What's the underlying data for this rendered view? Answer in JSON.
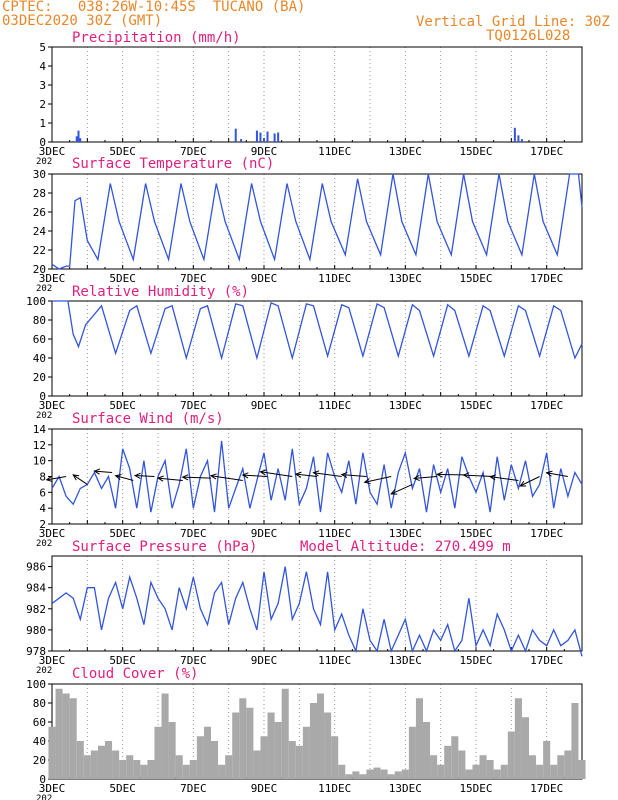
{
  "header": {
    "line1_left": "CPTEC:   038:26W-10:45S  TUCANO (BA)",
    "line2_left": "03DEC2020 30Z (GMT)",
    "line1_right": "Vertical Grid Line: 30Z",
    "line2_right": "TQ0126L028"
  },
  "x_tick_labels": [
    "3DEC",
    "5DEC",
    "7DEC",
    "9DEC",
    "11DEC",
    "13DEC",
    "15DEC",
    "17DEC"
  ],
  "x_year_stub": "202",
  "extra_label": "Model Altitude: 270.499 m",
  "colors": {
    "line": "#3355dd",
    "title": "#e0207f",
    "header": "#e8872a",
    "cloud": "#a9a9a9",
    "wind_arrow": "#000000"
  },
  "chart_data": [
    {
      "id": "precip",
      "type": "bar",
      "title": "Precipitation (mm/h)",
      "ylim": [
        0,
        5
      ],
      "yticks": [
        0,
        1,
        2,
        3,
        4,
        5
      ],
      "xlim_days": [
        3,
        18
      ],
      "x": [
        3.6,
        3.7,
        3.75,
        3.8,
        8.2,
        8.35,
        8.8,
        8.9,
        9.0,
        9.1,
        9.3,
        9.4,
        16.1,
        16.2,
        16.3
      ],
      "values": [
        0.05,
        0.3,
        0.6,
        0.2,
        0.7,
        0.15,
        0.6,
        0.5,
        0.2,
        0.55,
        0.45,
        0.5,
        0.75,
        0.35,
        0.15
      ]
    },
    {
      "id": "temp",
      "type": "line",
      "title": "Surface Temperature (nC)",
      "ylim": [
        20,
        30
      ],
      "yticks": [
        20,
        22,
        24,
        26,
        28,
        30
      ],
      "xlim_days": [
        3,
        18
      ],
      "series": [
        {
          "x": [
            3.0,
            3.2,
            3.4,
            3.5,
            3.65,
            3.8,
            4.0,
            4.3,
            4.65,
            4.9,
            5.3,
            5.65,
            5.9,
            6.3,
            6.65,
            6.9,
            7.3,
            7.65,
            7.9,
            8.3,
            8.65,
            8.9,
            9.3,
            9.65,
            9.9,
            10.3,
            10.65,
            10.9,
            11.3,
            11.65,
            11.9,
            12.3,
            12.65,
            12.9,
            13.3,
            13.65,
            13.9,
            14.3,
            14.65,
            14.9,
            15.3,
            15.65,
            15.9,
            16.3,
            16.65,
            16.9,
            17.3,
            17.65,
            17.9,
            18.0
          ],
          "values": [
            20.5,
            20.0,
            20.3,
            20.3,
            27.2,
            27.5,
            23.0,
            21.0,
            29.0,
            25.0,
            21.0,
            29.0,
            25.0,
            21.0,
            29.0,
            25.0,
            21.0,
            29.0,
            25.0,
            21.0,
            29.0,
            25.0,
            21.0,
            29.0,
            25.0,
            21.0,
            29.0,
            25.0,
            21.5,
            29.5,
            25.0,
            21.5,
            30.0,
            25.0,
            21.5,
            30.0,
            25.0,
            21.5,
            30.0,
            25.0,
            21.5,
            30.0,
            25.0,
            21.5,
            30.0,
            25.0,
            21.5,
            30.0,
            30.0,
            26.5
          ]
        }
      ]
    },
    {
      "id": "rh",
      "type": "line",
      "title": "Relative Humidity (%)",
      "ylim": [
        0,
        100
      ],
      "yticks": [
        0,
        20,
        40,
        60,
        80,
        100
      ],
      "xlim_days": [
        3,
        18
      ],
      "series": [
        {
          "x": [
            3.0,
            3.3,
            3.45,
            3.6,
            3.75,
            3.95,
            4.4,
            4.8,
            5.2,
            5.4,
            5.8,
            6.2,
            6.4,
            6.8,
            7.2,
            7.4,
            7.8,
            8.2,
            8.4,
            8.8,
            9.2,
            9.4,
            9.8,
            10.2,
            10.4,
            10.8,
            11.2,
            11.4,
            11.8,
            12.2,
            12.4,
            12.8,
            13.2,
            13.4,
            13.8,
            14.2,
            14.4,
            14.8,
            15.2,
            15.4,
            15.8,
            16.2,
            16.4,
            16.8,
            17.2,
            17.4,
            17.8,
            18.0
          ],
          "values": [
            100,
            100,
            100,
            65,
            52,
            75,
            95,
            45,
            90,
            95,
            45,
            92,
            95,
            40,
            92,
            95,
            40,
            97,
            95,
            40,
            98,
            95,
            40,
            97,
            95,
            42,
            96,
            93,
            42,
            97,
            93,
            42,
            96,
            90,
            42,
            96,
            90,
            42,
            95,
            90,
            42,
            95,
            90,
            42,
            95,
            90,
            40,
            55
          ]
        }
      ]
    },
    {
      "id": "wind",
      "type": "line",
      "title": "Surface Wind (m/s)",
      "ylim": [
        2,
        14
      ],
      "yticks": [
        2,
        4,
        6,
        8,
        10,
        12,
        14
      ],
      "xlim_days": [
        3,
        18
      ],
      "series": [
        {
          "x": [
            3.0,
            3.2,
            3.4,
            3.6,
            3.8,
            4.0,
            4.2,
            4.4,
            4.6,
            4.8,
            5.0,
            5.2,
            5.4,
            5.6,
            5.8,
            6.0,
            6.2,
            6.4,
            6.6,
            6.8,
            7.0,
            7.2,
            7.4,
            7.6,
            7.8,
            8.0,
            8.2,
            8.4,
            8.6,
            8.8,
            9.0,
            9.2,
            9.4,
            9.6,
            9.8,
            10.0,
            10.2,
            10.4,
            10.6,
            10.8,
            11.0,
            11.2,
            11.4,
            11.6,
            11.8,
            12.0,
            12.2,
            12.4,
            12.6,
            12.8,
            13.0,
            13.2,
            13.4,
            13.6,
            13.8,
            14.0,
            14.2,
            14.4,
            14.6,
            14.8,
            15.0,
            15.2,
            15.4,
            15.6,
            15.8,
            16.0,
            16.2,
            16.4,
            16.6,
            16.8,
            17.0,
            17.2,
            17.4,
            17.6,
            17.8,
            18.0
          ],
          "values": [
            6.5,
            8.0,
            5.5,
            4.5,
            6.5,
            7.0,
            8.5,
            6.5,
            8.0,
            4.0,
            11.5,
            9.0,
            4.0,
            10.0,
            3.5,
            8.0,
            10.0,
            4.0,
            7.0,
            11.5,
            4.0,
            8.0,
            10.0,
            3.5,
            12.5,
            4.0,
            6.5,
            9.0,
            4.0,
            7.5,
            11.0,
            5.0,
            9.0,
            5.0,
            11.5,
            4.5,
            6.5,
            10.5,
            3.5,
            11.0,
            8.0,
            6.0,
            10.0,
            4.5,
            11.0,
            6.0,
            4.5,
            9.5,
            4.0,
            8.5,
            11.0,
            6.5,
            9.0,
            3.5,
            9.5,
            6.0,
            9.0,
            4.0,
            10.5,
            8.0,
            6.0,
            8.5,
            3.5,
            10.5,
            5.0,
            9.5,
            6.5,
            10.0,
            5.5,
            7.0,
            11.0,
            4.0,
            9.0,
            5.5,
            8.5,
            7.0
          ]
        }
      ],
      "arrows": [
        {
          "x": 3.4,
          "speed": 8.0,
          "dx": -0.55,
          "dy": -0.7
        },
        {
          "x": 4.0,
          "speed": 7.0,
          "dx": -0.4,
          "dy": 2.0
        },
        {
          "x": 4.7,
          "speed": 8.5,
          "dx": -0.5,
          "dy": 0.3
        },
        {
          "x": 5.3,
          "speed": 7.5,
          "dx": -0.5,
          "dy": 1.0
        },
        {
          "x": 5.9,
          "speed": 8.0,
          "dx": -0.55,
          "dy": 0.2
        },
        {
          "x": 6.7,
          "speed": 7.5,
          "dx": -0.7,
          "dy": 0.5
        },
        {
          "x": 7.5,
          "speed": 7.8,
          "dx": -0.8,
          "dy": 0.2
        },
        {
          "x": 8.4,
          "speed": 7.5,
          "dx": -0.9,
          "dy": 1.0
        },
        {
          "x": 9.1,
          "speed": 8.0,
          "dx": -0.7,
          "dy": 0.3
        },
        {
          "x": 9.8,
          "speed": 8.0,
          "dx": -0.9,
          "dy": 1.0
        },
        {
          "x": 10.5,
          "speed": 8.0,
          "dx": -0.6,
          "dy": 0.5
        },
        {
          "x": 11.2,
          "speed": 8.0,
          "dx": -0.8,
          "dy": 0.8
        },
        {
          "x": 11.9,
          "speed": 8.0,
          "dx": -0.7,
          "dy": 0.4
        },
        {
          "x": 12.6,
          "speed": 8.0,
          "dx": -0.75,
          "dy": -1.2
        },
        {
          "x": 13.2,
          "speed": 7.0,
          "dx": -0.6,
          "dy": -2.0
        },
        {
          "x": 13.9,
          "speed": 8.0,
          "dx": -0.65,
          "dy": -0.4
        },
        {
          "x": 14.7,
          "speed": 8.2,
          "dx": -0.8,
          "dy": 0.1
        },
        {
          "x": 15.5,
          "speed": 8.0,
          "dx": -0.85,
          "dy": 0.3
        },
        {
          "x": 16.2,
          "speed": 7.5,
          "dx": -0.8,
          "dy": 0.8
        },
        {
          "x": 16.8,
          "speed": 8.0,
          "dx": -0.55,
          "dy": -2.0
        },
        {
          "x": 17.6,
          "speed": 8.0,
          "dx": -0.6,
          "dy": 0.8
        }
      ]
    },
    {
      "id": "pres",
      "type": "line",
      "title": "Surface Pressure (hPa)",
      "ylim": [
        978,
        987
      ],
      "yticks": [
        978,
        980,
        982,
        984,
        986
      ],
      "xlim_days": [
        3,
        18
      ],
      "series": [
        {
          "x": [
            3.0,
            3.2,
            3.4,
            3.6,
            3.8,
            4.0,
            4.2,
            4.4,
            4.6,
            4.8,
            5.0,
            5.2,
            5.4,
            5.6,
            5.8,
            6.0,
            6.2,
            6.4,
            6.6,
            6.8,
            7.0,
            7.2,
            7.4,
            7.6,
            7.8,
            8.0,
            8.2,
            8.4,
            8.6,
            8.8,
            9.0,
            9.2,
            9.4,
            9.6,
            9.8,
            10.0,
            10.2,
            10.4,
            10.6,
            10.8,
            11.0,
            11.2,
            11.4,
            11.6,
            11.8,
            12.0,
            12.2,
            12.4,
            12.6,
            12.8,
            13.0,
            13.2,
            13.4,
            13.6,
            13.8,
            14.0,
            14.2,
            14.4,
            14.6,
            14.8,
            15.0,
            15.2,
            15.4,
            15.6,
            15.8,
            16.0,
            16.2,
            16.4,
            16.6,
            16.8,
            17.0,
            17.2,
            17.4,
            17.6,
            17.8,
            18.0
          ],
          "values": [
            982.5,
            983.0,
            983.5,
            983.0,
            981.0,
            984.0,
            984.0,
            980.0,
            983.0,
            984.5,
            982.0,
            985.0,
            983.0,
            980.5,
            984.5,
            983.0,
            982.0,
            980.0,
            984.0,
            982.0,
            985.0,
            982.0,
            980.5,
            983.5,
            984.5,
            980.5,
            983.0,
            984.5,
            982.0,
            980.0,
            985.5,
            981.0,
            982.5,
            986.0,
            981.0,
            982.5,
            985.5,
            982.0,
            980.5,
            985.5,
            980.0,
            981.5,
            979.5,
            978.0,
            982.0,
            979.0,
            978.0,
            981.0,
            978.0,
            979.5,
            981.0,
            978.0,
            979.5,
            978.0,
            980.0,
            979.0,
            980.5,
            978.0,
            979.0,
            983.0,
            978.5,
            980.0,
            978.5,
            981.5,
            980.0,
            978.0,
            979.5,
            978.0,
            980.0,
            979.0,
            978.5,
            980.0,
            978.5,
            979.0,
            980.0,
            977.5
          ]
        }
      ]
    },
    {
      "id": "cloud",
      "type": "bar",
      "title": "Cloud Cover (%)",
      "ylim": [
        0,
        100
      ],
      "yticks": [
        0,
        20,
        40,
        60,
        80,
        100
      ],
      "xlim_days": [
        3,
        18
      ],
      "x": [
        3.0,
        3.2,
        3.4,
        3.6,
        3.8,
        4.0,
        4.2,
        4.4,
        4.6,
        4.8,
        5.0,
        5.2,
        5.4,
        5.6,
        5.8,
        6.0,
        6.2,
        6.4,
        6.6,
        6.8,
        7.0,
        7.2,
        7.4,
        7.6,
        7.8,
        8.0,
        8.2,
        8.4,
        8.6,
        8.8,
        9.0,
        9.2,
        9.4,
        9.6,
        9.8,
        10.0,
        10.2,
        10.4,
        10.6,
        10.8,
        11.0,
        11.2,
        11.4,
        11.6,
        11.8,
        12.0,
        12.2,
        12.4,
        12.6,
        12.8,
        13.0,
        13.2,
        13.4,
        13.6,
        13.8,
        14.0,
        14.2,
        14.4,
        14.6,
        14.8,
        15.0,
        15.2,
        15.4,
        15.6,
        15.8,
        16.0,
        16.2,
        16.4,
        16.6,
        16.8,
        17.0,
        17.2,
        17.4,
        17.6,
        17.8,
        18.0
      ],
      "values": [
        55,
        95,
        90,
        85,
        40,
        25,
        30,
        35,
        40,
        30,
        20,
        25,
        20,
        15,
        20,
        55,
        90,
        60,
        25,
        15,
        20,
        45,
        55,
        40,
        15,
        25,
        70,
        85,
        75,
        30,
        45,
        70,
        60,
        95,
        40,
        35,
        55,
        80,
        90,
        70,
        45,
        15,
        5,
        8,
        5,
        10,
        12,
        10,
        5,
        8,
        10,
        55,
        85,
        60,
        25,
        15,
        35,
        45,
        30,
        10,
        15,
        25,
        20,
        10,
        15,
        50,
        85,
        65,
        25,
        15,
        40,
        15,
        25,
        30,
        80,
        20
      ]
    }
  ]
}
